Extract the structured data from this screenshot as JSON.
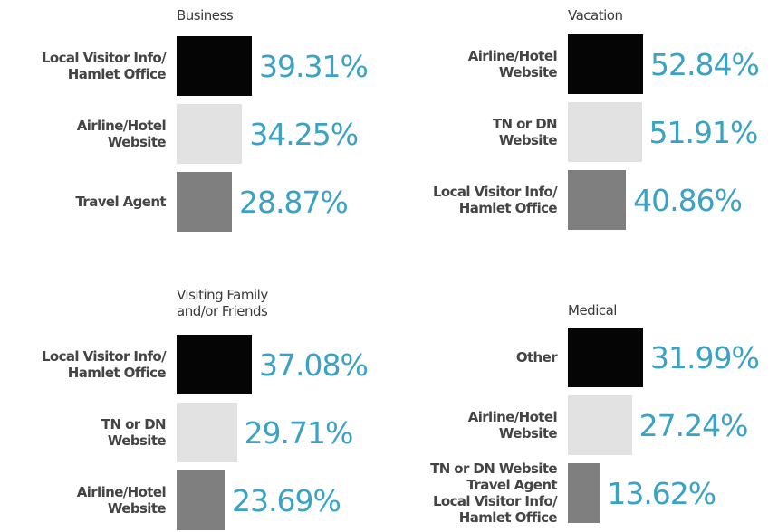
{
  "chart_data": [
    {
      "type": "bar",
      "title": "Business",
      "categories": [
        "Local Visitor Info/\nHamlet Office",
        "Airline/Hotel\nWebsite",
        "Travel Agent"
      ],
      "values": [
        39.31,
        34.25,
        28.87
      ],
      "value_labels": [
        "39.31%",
        "34.25%",
        "28.87%"
      ],
      "colors": [
        "#050505",
        "#e2e2e2",
        "#7f7f7f"
      ],
      "label_color": "#3aa3c4"
    },
    {
      "type": "bar",
      "title": "Vacation",
      "categories": [
        "Airline/Hotel\nWebsite",
        "TN or DN\nWebsite",
        "Local Visitor Info/\nHamlet Office"
      ],
      "values": [
        52.84,
        51.91,
        40.86
      ],
      "value_labels": [
        "52.84%",
        "51.91%",
        "40.86%"
      ],
      "colors": [
        "#050505",
        "#e2e2e2",
        "#7f7f7f"
      ],
      "label_color": "#3aa3c4"
    },
    {
      "type": "bar",
      "title": "Visiting Family\nand/or Friends",
      "categories": [
        "Local Visitor Info/\nHamlet Office",
        "TN or DN\nWebsite",
        "Airline/Hotel\nWebsite"
      ],
      "values": [
        37.08,
        29.71,
        23.69
      ],
      "value_labels": [
        "37.08%",
        "29.71%",
        "23.69%"
      ],
      "colors": [
        "#050505",
        "#e2e2e2",
        "#7f7f7f"
      ],
      "label_color": "#3aa3c4"
    },
    {
      "type": "bar",
      "title": "Medical",
      "categories": [
        "Other",
        "Airline/Hotel\nWebsite",
        "TN or DN Website\nTravel Agent\nLocal Visitor Info/\nHamlet Office"
      ],
      "values": [
        31.99,
        27.24,
        13.62
      ],
      "value_labels": [
        "31.99%",
        "27.24%",
        "13.62%"
      ],
      "colors": [
        "#050505",
        "#e2e2e2",
        "#7f7f7f"
      ],
      "label_color": "#3aa3c4"
    }
  ]
}
